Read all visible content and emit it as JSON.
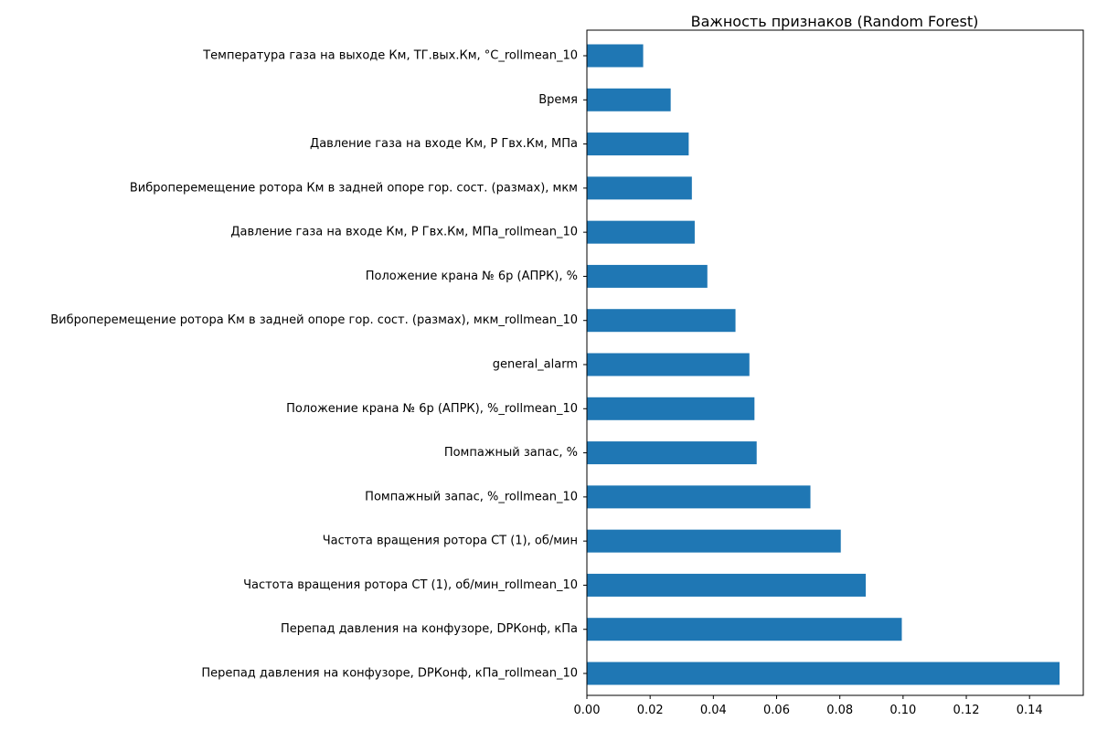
{
  "chart_data": {
    "type": "bar",
    "orientation": "horizontal",
    "title": "Важность признаков (Random Forest)",
    "xlabel": "",
    "ylabel": "",
    "xlim": [
      0,
      0.157
    ],
    "x_ticks": [
      "0.00",
      "0.02",
      "0.04",
      "0.06",
      "0.08",
      "0.10",
      "0.12",
      "0.14"
    ],
    "x_tick_values": [
      0,
      0.02,
      0.04,
      0.06,
      0.08,
      0.1,
      0.12,
      0.14
    ],
    "grid": false,
    "bar_color": "#1f77b4",
    "categories": [
      "Температура газа на выходе Км, ТГ.вых.Км, °C_rollmean_10",
      "Время",
      "Давление газа на входе Км, Р Гвх.Км, МПа",
      "Виброперемещение ротора Км в задней опоре гор. сост. (размах), мкм",
      "Давление газа на входе Км, Р Гвх.Км, МПа_rollmean_10",
      "Положение крана  № 6р (АПРК), %",
      "Виброперемещение ротора Км в задней опоре гор. сост. (размах), мкм_rollmean_10",
      "general_alarm",
      "Положение крана  № 6р (АПРК), %_rollmean_10",
      "Помпажный запас, %",
      "Помпажный запас, %_rollmean_10",
      "Частота вращения ротора СТ (1), об/мин",
      "Частота вращения ротора СТ (1), об/мин_rollmean_10",
      "Перепад давления  на конфузоре,  DPКонф, кПа",
      "Перепад давления  на конфузоре,  DPКонф, кПа_rollmean_10"
    ],
    "values": [
      0.0178,
      0.0265,
      0.0322,
      0.0332,
      0.0341,
      0.0381,
      0.047,
      0.0514,
      0.053,
      0.0537,
      0.0707,
      0.0803,
      0.0882,
      0.0996,
      0.1495
    ]
  }
}
